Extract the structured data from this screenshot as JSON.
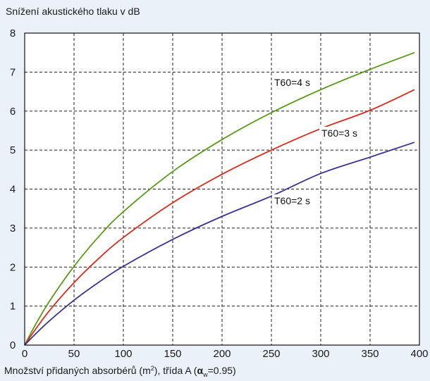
{
  "chart_data": {
    "type": "line",
    "ylabel": "Snížení akustického tlaku v dB",
    "xlabel": {
      "before": "Množství přidaných absorbérů  (m",
      "sup": "2",
      "middle": "), třída A (",
      "alpha": "α",
      "sub": "w",
      "after": "=0.95)"
    },
    "xlim": [
      0,
      400
    ],
    "ylim": [
      0,
      8
    ],
    "xticks": [
      0,
      50,
      100,
      150,
      200,
      250,
      300,
      350,
      400
    ],
    "yticks": [
      0,
      1,
      2,
      3,
      4,
      5,
      6,
      7,
      8
    ],
    "grid": true,
    "x": [
      0,
      10,
      25,
      50,
      75,
      100,
      150,
      200,
      250,
      300,
      350,
      395
    ],
    "series": [
      {
        "name": "T60=4 s",
        "color": "#5a9a18",
        "values": [
          0,
          0.48,
          1.12,
          2.02,
          2.78,
          3.42,
          4.45,
          5.27,
          5.96,
          6.55,
          7.07,
          7.5
        ]
      },
      {
        "name": "T60=3 s",
        "color": "#dd2a1c",
        "values": [
          0,
          0.37,
          0.88,
          1.6,
          2.22,
          2.76,
          3.65,
          4.38,
          5.0,
          5.55,
          6.02,
          6.55
        ]
      },
      {
        "name": "T60=2 s",
        "color": "#3a3592",
        "values": [
          0,
          0.26,
          0.62,
          1.15,
          1.61,
          2.02,
          2.71,
          3.3,
          3.82,
          4.4,
          4.82,
          5.2
        ]
      }
    ]
  }
}
